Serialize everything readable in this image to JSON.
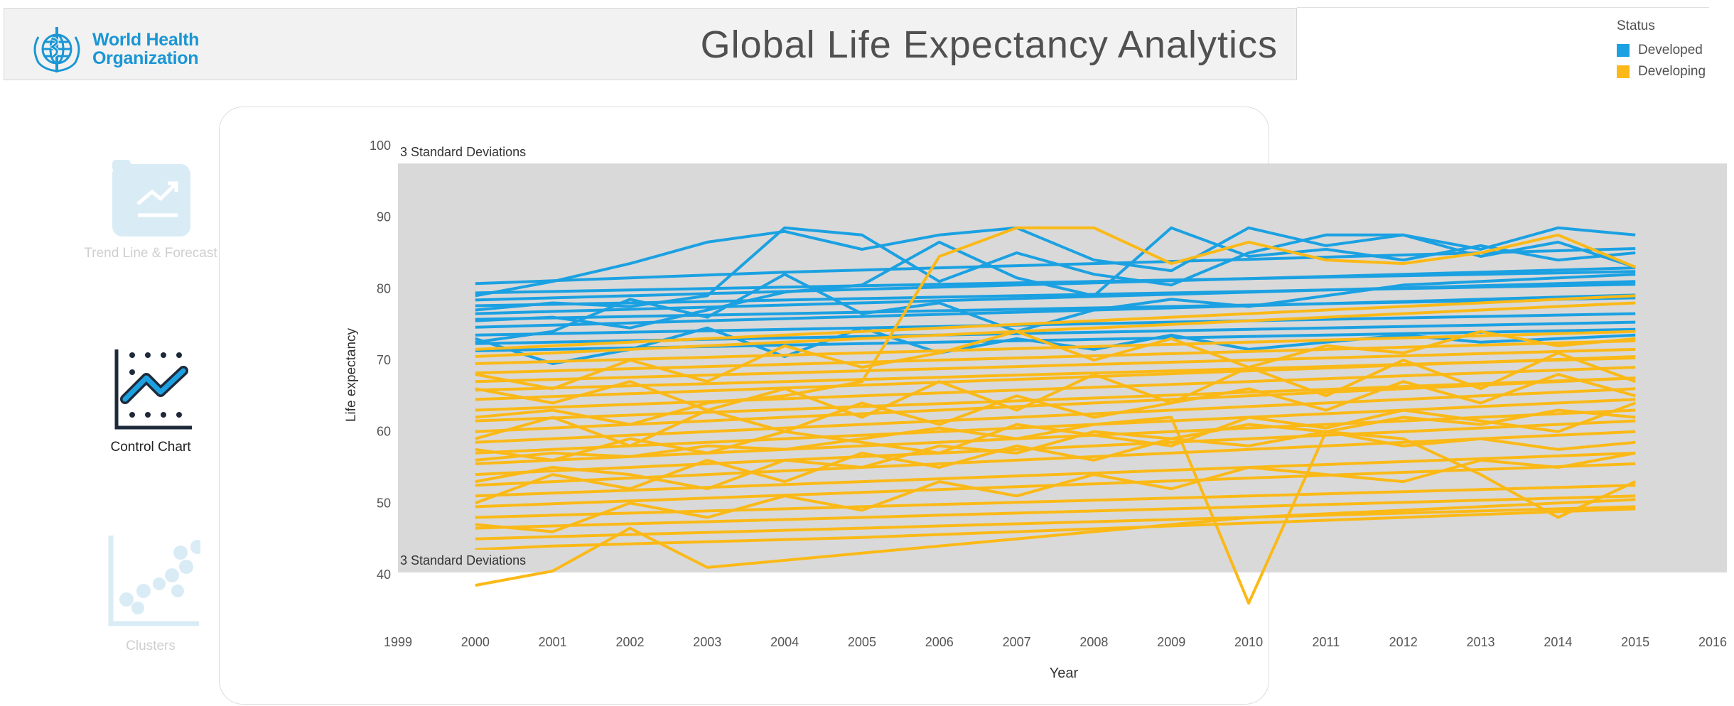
{
  "header": {
    "logo_line1": "World Health",
    "logo_line2": "Organization",
    "title": "Global Life Expectancy Analytics"
  },
  "nav": {
    "items": [
      {
        "label": "Trend Line & Forecast",
        "icon": "trend-chart-icon",
        "active": false
      },
      {
        "label": "Control Chart",
        "icon": "control-chart-icon",
        "active": true
      },
      {
        "label": "Clusters",
        "icon": "scatter-clusters-icon",
        "active": false
      }
    ]
  },
  "legend": {
    "title": "Status",
    "items": [
      {
        "label": "Developed",
        "color": "#1ba1e2"
      },
      {
        "label": "Developing",
        "color": "#fbb917"
      }
    ]
  },
  "chart_data": {
    "type": "line",
    "xlabel": "Year",
    "ylabel": "Life expectancy",
    "xlim": [
      1999,
      2016
    ],
    "ylim": [
      35,
      100
    ],
    "x_ticks": [
      "1999",
      "2000",
      "2001",
      "2002",
      "2003",
      "2004",
      "2005",
      "2006",
      "2007",
      "2008",
      "2009",
      "2010",
      "2011",
      "2012",
      "2013",
      "2014",
      "2015",
      "2016"
    ],
    "y_ticks": [
      "40",
      "50",
      "60",
      "70",
      "80",
      "90",
      "100"
    ],
    "band": {
      "lower": 40.3,
      "upper": 97.5,
      "upper_label": "3 Standard Deviations",
      "lower_label": "3 Standard Deviations"
    },
    "grid": false,
    "years": [
      2000,
      2001,
      2002,
      2003,
      2004,
      2005,
      2006,
      2007,
      2008,
      2009,
      2010,
      2011,
      2012,
      2013,
      2014,
      2015
    ],
    "series": [
      {
        "group": "Developed",
        "color": "#1ba1e2",
        "values": [
          79.4,
          79.6,
          79.8,
          80.0,
          80.2,
          80.4,
          80.6,
          80.8,
          81.0,
          81.2,
          81.4,
          81.6,
          81.8,
          82.0,
          82.2,
          82.4
        ]
      },
      {
        "group": "Developed",
        "color": "#1ba1e2",
        "values": [
          78.4,
          78.7,
          79.0,
          79.3,
          79.6,
          79.9,
          80.2,
          80.5,
          80.8,
          81.1,
          81.4,
          81.7,
          82.0,
          82.3,
          82.6,
          82.9
        ]
      },
      {
        "group": "Developed",
        "color": "#1ba1e2",
        "values": [
          77.6,
          77.8,
          78.0,
          78.2,
          78.4,
          78.6,
          78.8,
          79.0,
          79.2,
          79.4,
          79.6,
          79.8,
          80.0,
          80.2,
          80.4,
          80.6
        ]
      },
      {
        "group": "Developed",
        "color": "#1ba1e2",
        "values": [
          76.5,
          76.8,
          77.1,
          77.4,
          77.7,
          78.0,
          78.3,
          78.6,
          78.9,
          79.2,
          79.5,
          79.8,
          80.1,
          80.4,
          80.7,
          81.0
        ]
      },
      {
        "group": "Developed",
        "color": "#1ba1e2",
        "values": [
          75.7,
          75.9,
          76.1,
          76.3,
          76.5,
          76.7,
          76.9,
          77.1,
          77.3,
          77.5,
          77.7,
          77.9,
          78.1,
          78.3,
          78.5,
          78.7
        ]
      },
      {
        "group": "Developed",
        "color": "#1ba1e2",
        "values": [
          74.6,
          74.9,
          75.2,
          75.5,
          75.8,
          76.1,
          76.4,
          76.7,
          77.0,
          77.3,
          77.6,
          77.9,
          78.2,
          78.5,
          78.8,
          79.1
        ]
      },
      {
        "group": "Developed",
        "color": "#1ba1e2",
        "values": [
          73.5,
          73.7,
          73.9,
          74.1,
          74.3,
          74.5,
          74.7,
          74.9,
          75.1,
          75.3,
          75.5,
          75.7,
          75.9,
          76.1,
          76.3,
          76.5
        ]
      },
      {
        "group": "Developed",
        "color": "#1ba1e2",
        "values": [
          72.3,
          72.5,
          72.7,
          72.9,
          73.1,
          73.3,
          73.5,
          73.7,
          73.9,
          74.1,
          74.3,
          74.5,
          74.7,
          74.9,
          75.1,
          75.3
        ]
      },
      {
        "group": "Developed",
        "color": "#1ba1e2",
        "values": [
          71.3,
          71.5,
          71.7,
          71.9,
          72.1,
          72.3,
          72.5,
          72.7,
          72.9,
          73.1,
          73.3,
          73.5,
          73.7,
          73.9,
          74.1,
          74.3
        ]
      },
      {
        "group": "Developed",
        "color": "#1ba1e2",
        "values": [
          80.7,
          81.1,
          81.5,
          81.9,
          82.3,
          82.6,
          82.9,
          83.2,
          83.5,
          83.8,
          84.1,
          84.4,
          84.7,
          85.0,
          85.3,
          85.6
        ]
      },
      {
        "group": "Developed",
        "color": "#1ba1e2",
        "values": [
          79.0,
          81.0,
          83.5,
          86.5,
          88.0,
          85.5,
          87.5,
          88.5,
          84.0,
          82.5,
          88.5,
          86.0,
          87.5,
          85.5,
          88.5,
          87.5
        ]
      },
      {
        "group": "Developed",
        "color": "#1ba1e2",
        "values": [
          73.0,
          69.5,
          71.5,
          74.5,
          70.5,
          74.5,
          71.0,
          73.0,
          71.5,
          73.5,
          71.5,
          72.5,
          73.5,
          72.5,
          73.0,
          73.5
        ]
      },
      {
        "group": "Developed",
        "color": "#1ba1e2",
        "values": [
          77.0,
          78.0,
          77.5,
          79.0,
          88.5,
          87.5,
          81.0,
          85.0,
          82.0,
          80.5,
          85.0,
          87.5,
          87.5,
          84.5,
          86.5,
          83.0
        ]
      },
      {
        "group": "Developed",
        "color": "#1ba1e2",
        "values": [
          75.5,
          76.0,
          74.5,
          77.0,
          79.5,
          80.5,
          86.5,
          81.5,
          79.0,
          88.5,
          84.5,
          85.5,
          84.0,
          86.0,
          84.0,
          85.0
        ]
      },
      {
        "group": "Developed",
        "color": "#1ba1e2",
        "values": [
          72.5,
          74.0,
          78.5,
          76.0,
          82.0,
          76.5,
          78.0,
          74.0,
          77.0,
          78.5,
          77.5,
          79.0,
          80.5,
          81.0,
          81.5,
          82.0
        ]
      },
      {
        "group": "Developing",
        "color": "#fbb917",
        "values": [
          69.5,
          69.8,
          70.1,
          70.4,
          70.7,
          71.0,
          71.3,
          71.6,
          71.9,
          72.2,
          72.5,
          72.8,
          73.1,
          73.4,
          73.7,
          74.0
        ]
      },
      {
        "group": "Developing",
        "color": "#fbb917",
        "values": [
          68.2,
          68.5,
          68.8,
          69.1,
          69.4,
          69.7,
          70.0,
          70.3,
          70.6,
          70.9,
          71.2,
          71.5,
          71.8,
          72.1,
          72.4,
          72.7
        ]
      },
      {
        "group": "Developing",
        "color": "#fbb917",
        "values": [
          67.0,
          67.3,
          67.6,
          67.9,
          68.2,
          68.5,
          68.8,
          69.1,
          69.4,
          69.7,
          70.0,
          70.3,
          70.6,
          70.9,
          71.2,
          71.5
        ]
      },
      {
        "group": "Developing",
        "color": "#fbb917",
        "values": [
          65.8,
          66.1,
          66.4,
          66.7,
          67.0,
          67.3,
          67.6,
          67.9,
          68.2,
          68.5,
          68.8,
          69.1,
          69.4,
          69.7,
          70.0,
          70.3
        ]
      },
      {
        "group": "Developing",
        "color": "#fbb917",
        "values": [
          64.5,
          64.9,
          65.3,
          65.7,
          66.1,
          66.5,
          66.9,
          67.3,
          67.7,
          68.1,
          68.5,
          68.9,
          69.3,
          69.7,
          70.1,
          70.5
        ]
      },
      {
        "group": "Developing",
        "color": "#fbb917",
        "values": [
          63.0,
          63.4,
          63.8,
          64.2,
          64.6,
          65.0,
          65.4,
          65.8,
          66.2,
          66.6,
          67.0,
          67.4,
          67.8,
          68.2,
          68.6,
          69.0
        ]
      },
      {
        "group": "Developing",
        "color": "#fbb917",
        "values": [
          61.5,
          61.9,
          62.3,
          62.7,
          63.1,
          63.5,
          63.9,
          64.3,
          64.7,
          65.1,
          65.5,
          65.9,
          66.3,
          66.7,
          67.1,
          67.5
        ]
      },
      {
        "group": "Developing",
        "color": "#fbb917",
        "values": [
          60.0,
          60.5,
          61.0,
          61.5,
          62.0,
          62.5,
          63.0,
          63.5,
          64.0,
          64.5,
          65.0,
          65.5,
          66.0,
          66.5,
          67.0,
          67.5
        ]
      },
      {
        "group": "Developing",
        "color": "#fbb917",
        "values": [
          58.5,
          59.0,
          59.5,
          60.0,
          60.5,
          61.0,
          61.5,
          62.0,
          62.5,
          63.0,
          63.5,
          64.0,
          64.5,
          65.0,
          65.5,
          66.0
        ]
      },
      {
        "group": "Developing",
        "color": "#fbb917",
        "values": [
          57.0,
          57.5,
          58.0,
          58.5,
          59.0,
          59.5,
          60.0,
          60.5,
          61.0,
          61.5,
          62.0,
          62.5,
          63.0,
          63.5,
          64.0,
          64.5
        ]
      },
      {
        "group": "Developing",
        "color": "#fbb917",
        "values": [
          55.5,
          56.0,
          56.5,
          57.0,
          57.5,
          58.0,
          58.5,
          59.0,
          59.5,
          60.0,
          60.5,
          61.0,
          61.5,
          62.0,
          62.5,
          63.0
        ]
      },
      {
        "group": "Developing",
        "color": "#fbb917",
        "values": [
          54.0,
          54.5,
          55.0,
          55.5,
          56.0,
          56.5,
          57.0,
          57.5,
          58.0,
          58.5,
          59.0,
          59.5,
          60.0,
          60.5,
          61.0,
          61.5
        ]
      },
      {
        "group": "Developing",
        "color": "#fbb917",
        "values": [
          52.5,
          53.0,
          53.5,
          54.0,
          54.5,
          55.0,
          55.5,
          56.0,
          56.5,
          57.0,
          57.5,
          58.0,
          58.5,
          59.0,
          59.5,
          60.0
        ]
      },
      {
        "group": "Developing",
        "color": "#fbb917",
        "values": [
          51.0,
          51.4,
          51.8,
          52.2,
          52.6,
          53.0,
          53.4,
          53.8,
          54.2,
          54.6,
          55.0,
          55.4,
          55.8,
          56.2,
          56.6,
          57.0
        ]
      },
      {
        "group": "Developing",
        "color": "#fbb917",
        "values": [
          49.5,
          49.9,
          50.3,
          50.7,
          51.1,
          51.5,
          51.9,
          52.3,
          52.7,
          53.1,
          53.5,
          53.9,
          54.3,
          54.7,
          55.1,
          55.5
        ]
      },
      {
        "group": "Developing",
        "color": "#fbb917",
        "values": [
          48.0,
          48.3,
          48.6,
          48.9,
          49.2,
          49.5,
          49.8,
          50.1,
          50.4,
          50.7,
          51.0,
          51.3,
          51.6,
          51.9,
          52.2,
          52.5
        ]
      },
      {
        "group": "Developing",
        "color": "#fbb917",
        "values": [
          46.5,
          46.8,
          47.1,
          47.4,
          47.7,
          48.0,
          48.3,
          48.6,
          48.9,
          49.2,
          49.5,
          49.8,
          50.1,
          50.4,
          50.7,
          51.0
        ]
      },
      {
        "group": "Developing",
        "color": "#fbb917",
        "values": [
          45.0,
          45.3,
          45.6,
          45.9,
          46.2,
          46.5,
          46.8,
          47.1,
          47.4,
          47.7,
          48.0,
          48.3,
          48.6,
          48.9,
          49.2,
          49.5
        ]
      },
      {
        "group": "Developing",
        "color": "#fbb917",
        "values": [
          43.5,
          44.0,
          44.3,
          44.6,
          44.9,
          45.2,
          45.6,
          46.0,
          46.4,
          46.8,
          47.2,
          47.6,
          48.0,
          48.4,
          48.8,
          49.2
        ]
      },
      {
        "group": "Developing",
        "color": "#fbb917",
        "values": [
          38.5,
          40.5,
          46.5,
          41.0,
          42.0,
          43.0,
          44.0,
          45.0,
          46.0,
          47.0,
          48.0,
          48.5,
          49.0,
          49.5,
          50.0,
          50.5
        ]
      },
      {
        "group": "Developing",
        "color": "#fbb917",
        "values": [
          56.0,
          57.0,
          56.5,
          58.0,
          57.5,
          59.0,
          60.5,
          59.0,
          61.0,
          62.0,
          36.0,
          60.0,
          58.0,
          59.0,
          57.5,
          58.5
        ]
      },
      {
        "group": "Developing",
        "color": "#fbb917",
        "values": [
          62.0,
          63.0,
          61.0,
          64.0,
          65.0,
          67.0,
          84.5,
          88.5,
          88.5,
          83.5,
          86.5,
          84.0,
          83.5,
          85.0,
          87.5,
          83.0
        ]
      },
      {
        "group": "Developing",
        "color": "#fbb917",
        "values": [
          50.0,
          54.0,
          52.0,
          56.0,
          53.0,
          57.0,
          55.0,
          58.0,
          56.0,
          59.0,
          58.0,
          60.0,
          59.0,
          54.0,
          48.0,
          53.0
        ]
      },
      {
        "group": "Developing",
        "color": "#fbb917",
        "values": [
          68.0,
          66.0,
          70.0,
          67.0,
          72.0,
          69.0,
          71.0,
          74.0,
          70.0,
          73.0,
          69.0,
          72.0,
          71.0,
          74.0,
          72.0,
          73.0
        ]
      },
      {
        "group": "Developing",
        "color": "#fbb917",
        "values": [
          59.0,
          62.0,
          58.0,
          63.0,
          60.0,
          64.0,
          61.0,
          65.0,
          62.0,
          64.0,
          66.0,
          63.0,
          67.0,
          64.0,
          68.0,
          65.0
        ]
      },
      {
        "group": "Developing",
        "color": "#fbb917",
        "values": [
          47.0,
          46.0,
          50.0,
          48.0,
          51.0,
          49.0,
          53.0,
          51.0,
          54.0,
          52.0,
          55.0,
          54.0,
          53.0,
          56.0,
          55.0,
          57.0
        ]
      },
      {
        "group": "Developing",
        "color": "#fbb917",
        "values": [
          53.0,
          55.0,
          54.0,
          52.0,
          56.0,
          55.0,
          58.0,
          57.0,
          60.0,
          59.0,
          61.0,
          60.0,
          62.0,
          61.0,
          63.0,
          62.0
        ]
      },
      {
        "group": "Developing",
        "color": "#fbb917",
        "values": [
          70.5,
          71.0,
          71.5,
          72.0,
          72.5,
          73.0,
          73.5,
          74.0,
          74.5,
          75.0,
          75.5,
          76.0,
          76.5,
          77.0,
          77.5,
          78.0
        ]
      },
      {
        "group": "Developing",
        "color": "#fbb917",
        "values": [
          71.5,
          72.0,
          72.5,
          73.0,
          73.5,
          74.0,
          74.5,
          75.0,
          75.5,
          76.0,
          76.5,
          77.0,
          77.5,
          78.0,
          78.5,
          79.0
        ]
      },
      {
        "group": "Developing",
        "color": "#fbb917",
        "values": [
          66.0,
          64.0,
          67.0,
          63.0,
          66.0,
          62.0,
          67.0,
          63.0,
          68.0,
          64.0,
          69.0,
          65.0,
          70.0,
          66.0,
          71.0,
          67.0
        ]
      },
      {
        "group": "Developing",
        "color": "#fbb917",
        "values": [
          57.5,
          56.0,
          59.0,
          57.0,
          60.0,
          58.5,
          57.0,
          61.0,
          59.5,
          58.0,
          62.0,
          60.5,
          63.0,
          61.5,
          60.0,
          64.0
        ]
      }
    ]
  }
}
